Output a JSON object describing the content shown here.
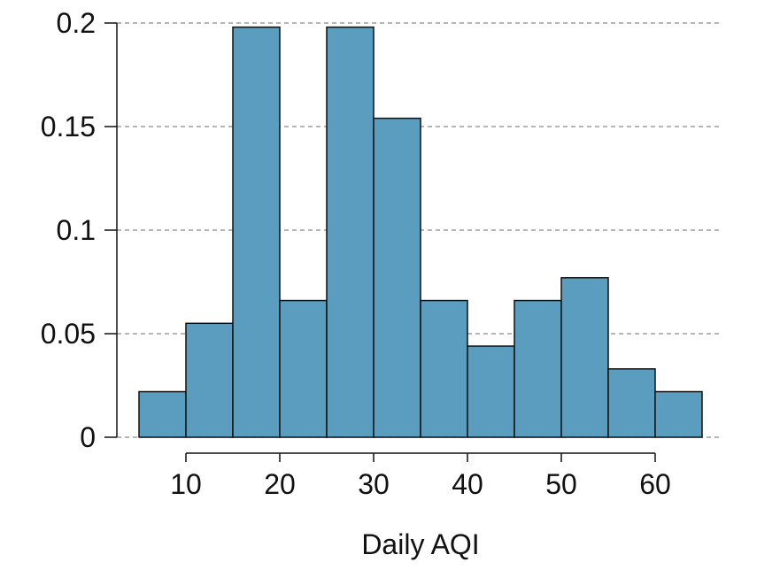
{
  "chart_data": {
    "type": "bar",
    "title": "",
    "xlabel": "Daily AQI",
    "ylabel": "",
    "bin_edges": [
      5,
      10,
      15,
      20,
      25,
      30,
      35,
      40,
      45,
      50,
      55,
      60,
      65
    ],
    "values": [
      0.022,
      0.055,
      0.198,
      0.066,
      0.198,
      0.154,
      0.066,
      0.044,
      0.066,
      0.077,
      0.033,
      0.022
    ],
    "xlim": [
      5,
      65
    ],
    "ylim": [
      0,
      0.2
    ],
    "xticks": [
      10,
      20,
      30,
      40,
      50,
      60
    ],
    "xtick_labels": [
      "10",
      "20",
      "30",
      "40",
      "50",
      "60"
    ],
    "yticks": [
      0,
      0.05,
      0.1,
      0.15,
      0.2
    ],
    "ytick_labels": [
      "0",
      "0.05",
      "0.1",
      "0.15",
      "0.2"
    ],
    "grid": "horizontal dashed",
    "bar_color": "#5b9dbf",
    "edge_color": "#111111",
    "grid_color": "#8a8a8a"
  }
}
